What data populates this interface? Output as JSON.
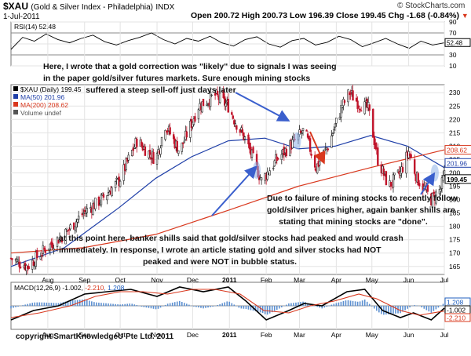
{
  "header": {
    "symbol": "$XAU",
    "name": "(Gold & Silver Index - Philadelphia)",
    "exchange": "INDX",
    "date": "1-Jul-2011",
    "quote": "Open 200.72  High 200.73  Low 196.39  Close 199.45  Chg -1.68 (-0.84%)",
    "quote_arrow": "▼",
    "watermark": "© StockCharts.com"
  },
  "annotations": {
    "correction": [
      "Here, I wrote that a gold correction was \"likely\" due to signals I was seeing",
      "in the paper gold/silver futures markets. Sure enough mining stocks",
      "suffered a steep sell-off just days later"
    ],
    "failure": [
      "Due to failure of mining stocks to recently follow",
      "gold/silver prices higher, again banker shills are",
      "stating that mining stocks are \"done\"."
    ],
    "peak": [
      "at this point here, banker shills said that gold/silver stocks had peaked and would crash",
      "immediately. In response, I wrote an article stating gold and silver stocks had NOT",
      "peaked and were NOT in bubble status."
    ],
    "copyright": "copyright SmartKnowledgeU Pte Ltd. 2011"
  },
  "chart_data": [
    {
      "type": "line",
      "panel": "rsi",
      "legend": "RSI(14) 52.48",
      "last_value_label": "52.48",
      "y_ticks": [
        10,
        30,
        50,
        70,
        90
      ],
      "reference_lines": [
        30,
        70
      ],
      "ylim": [
        10,
        90
      ],
      "series": [
        {
          "name": "RSI(14)",
          "color": "#000000",
          "values": [
            40,
            62,
            55,
            68,
            58,
            52,
            60,
            66,
            54,
            48,
            56,
            62,
            70,
            58,
            50,
            60,
            55,
            64,
            52,
            46,
            58,
            63,
            50,
            44,
            56,
            60,
            48,
            53,
            64,
            58,
            45,
            52,
            60,
            50,
            42,
            55,
            48,
            52
          ]
        }
      ]
    },
    {
      "type": "candlestick",
      "panel": "price",
      "legend": [
        "$XAU (Daily) 199.45",
        "MA(50) 201.96",
        "MA(200) 208.62",
        "Volume undef"
      ],
      "x_axis": {
        "labels": [
          "Aug",
          "Sep",
          "Oct",
          "Nov",
          "Dec",
          "2011",
          "Feb",
          "Mar",
          "Apr",
          "May",
          "Jun",
          "Jul"
        ],
        "start": "2010-07-01",
        "end": "2011-07-01"
      },
      "y_ticks": [
        165,
        170,
        175,
        180,
        185,
        190,
        195,
        200,
        205,
        210,
        215,
        220,
        225,
        230
      ],
      "ylim": [
        162,
        233
      ],
      "price_badges": [
        {
          "label": "208.62",
          "value": 208.62,
          "color": "#d9381e"
        },
        {
          "label": "201.96",
          "value": 201.96,
          "color": "#1f3fa8"
        },
        {
          "label": "199.45",
          "value": 199.45,
          "color": "#000000"
        }
      ],
      "close_anchors": [
        [
          "2010-07-01",
          168
        ],
        [
          "2010-07-15",
          165
        ],
        [
          "2010-07-31",
          172
        ],
        [
          "2010-08-15",
          177
        ],
        [
          "2010-08-31",
          185
        ],
        [
          "2010-09-15",
          190
        ],
        [
          "2010-09-30",
          197
        ],
        [
          "2010-10-15",
          212
        ],
        [
          "2010-10-31",
          205
        ],
        [
          "2010-11-08",
          218
        ],
        [
          "2010-11-20",
          208
        ],
        [
          "2010-12-06",
          225
        ],
        [
          "2010-12-20",
          229
        ],
        [
          "2010-12-31",
          225
        ],
        [
          "2011-01-05",
          220
        ],
        [
          "2011-01-15",
          212
        ],
        [
          "2011-01-28",
          197
        ],
        [
          "2011-02-10",
          205
        ],
        [
          "2011-02-25",
          212
        ],
        [
          "2011-03-05",
          216
        ],
        [
          "2011-03-15",
          202
        ],
        [
          "2011-03-25",
          210
        ],
        [
          "2011-04-05",
          224
        ],
        [
          "2011-04-12",
          230
        ],
        [
          "2011-04-20",
          226
        ],
        [
          "2011-04-28",
          224
        ],
        [
          "2011-05-06",
          205
        ],
        [
          "2011-05-15",
          195
        ],
        [
          "2011-05-25",
          200
        ],
        [
          "2011-06-01",
          208
        ],
        [
          "2011-06-08",
          198
        ],
        [
          "2011-06-20",
          190
        ],
        [
          "2011-06-28",
          194
        ],
        [
          "2011-07-01",
          199.45
        ]
      ],
      "series": [
        {
          "name": "MA(50)",
          "color": "#1f3fa8",
          "points": [
            [
              "2010-07-01",
              165
            ],
            [
              "2010-08-15",
              172
            ],
            [
              "2010-09-30",
              187
            ],
            [
              "2010-10-31",
              198
            ],
            [
              "2010-11-30",
              206
            ],
            [
              "2010-12-31",
              212
            ],
            [
              "2011-01-31",
              213
            ],
            [
              "2011-02-28",
              209
            ],
            [
              "2011-03-31",
              210
            ],
            [
              "2011-04-30",
              214
            ],
            [
              "2011-05-31",
              210
            ],
            [
              "2011-07-01",
              201.96
            ]
          ]
        },
        {
          "name": "MA(200)",
          "color": "#d9381e",
          "points": [
            [
              "2010-07-01",
              170
            ],
            [
              "2010-08-31",
              172
            ],
            [
              "2010-10-31",
              177
            ],
            [
              "2010-12-31",
              186
            ],
            [
              "2011-02-28",
              195
            ],
            [
              "2011-04-30",
              202
            ],
            [
              "2011-07-01",
              208.62
            ]
          ]
        }
      ]
    },
    {
      "type": "line",
      "panel": "macd",
      "legend": "MACD(12,26,9) -1.002, -2.210, 1.208",
      "legend_parts": [
        "MACD(12,26,9) -1.002, ",
        "-2.210",
        ", 1.208"
      ],
      "badges": [
        "1.208",
        "-1.002",
        "-2.210"
      ],
      "ylim": [
        -10,
        10
      ],
      "series": [
        {
          "name": "MACD",
          "color": "#000000",
          "points": [
            [
              "2010-07-01",
              -6
            ],
            [
              "2010-07-20",
              -2
            ],
            [
              "2010-08-10",
              0
            ],
            [
              "2010-09-01",
              5
            ],
            [
              "2010-09-20",
              6
            ],
            [
              "2010-10-10",
              7
            ],
            [
              "2010-11-01",
              4
            ],
            [
              "2010-11-20",
              8
            ],
            [
              "2010-12-10",
              6
            ],
            [
              "2010-12-31",
              8
            ],
            [
              "2011-01-15",
              2
            ],
            [
              "2011-02-01",
              -6
            ],
            [
              "2011-02-20",
              -2
            ],
            [
              "2011-03-05",
              1
            ],
            [
              "2011-03-20",
              0
            ],
            [
              "2011-04-10",
              6
            ],
            [
              "2011-04-25",
              7
            ],
            [
              "2011-05-10",
              -2
            ],
            [
              "2011-05-25",
              -5
            ],
            [
              "2011-06-05",
              -3
            ],
            [
              "2011-06-20",
              -6
            ],
            [
              "2011-07-01",
              -1
            ]
          ]
        },
        {
          "name": "Signal",
          "color": "#d9381e",
          "points": [
            [
              "2010-07-01",
              -5
            ],
            [
              "2010-07-25",
              -3
            ],
            [
              "2010-08-20",
              0
            ],
            [
              "2010-09-10",
              4
            ],
            [
              "2010-10-01",
              6
            ],
            [
              "2010-10-20",
              6
            ],
            [
              "2010-11-10",
              5
            ],
            [
              "2010-12-01",
              7
            ],
            [
              "2010-12-20",
              7
            ],
            [
              "2011-01-10",
              5
            ],
            [
              "2011-01-30",
              -2
            ],
            [
              "2011-02-20",
              -3
            ],
            [
              "2011-03-10",
              0
            ],
            [
              "2011-03-30",
              2
            ],
            [
              "2011-04-20",
              5
            ],
            [
              "2011-05-05",
              3
            ],
            [
              "2011-05-25",
              -2
            ],
            [
              "2011-06-10",
              -4
            ],
            [
              "2011-07-01",
              -2.2
            ]
          ]
        }
      ]
    }
  ]
}
